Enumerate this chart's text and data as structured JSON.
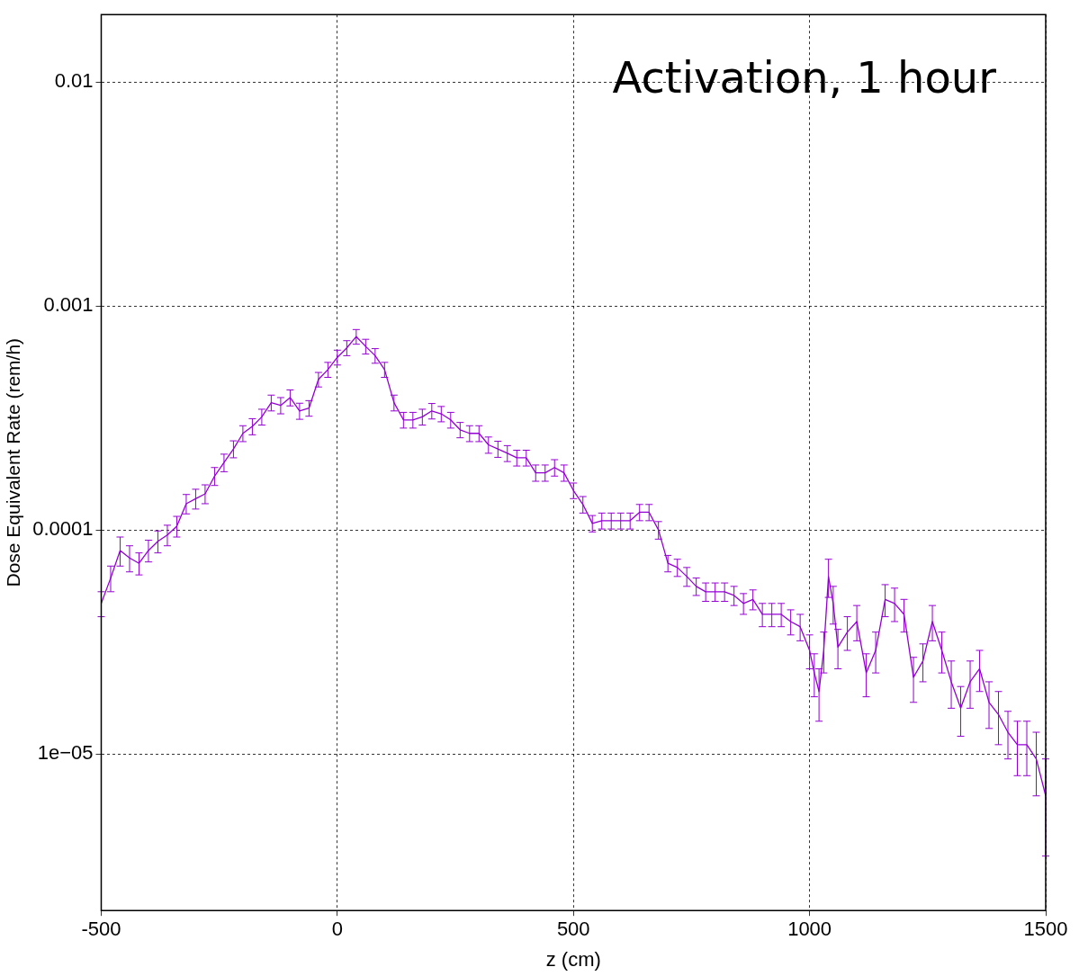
{
  "chart_data": {
    "type": "line",
    "xlabel": "z (cm)",
    "ylabel": "Dose Equivalent Rate (rem/h)",
    "annotations": [
      "Activation, 1 hour"
    ],
    "log": "y",
    "grid": true,
    "marker": "none",
    "line_style": "solid",
    "xlim": [
      -500,
      1500
    ],
    "xticks": [
      -500,
      0,
      500,
      1000,
      1500
    ],
    "ylim": [
      2e-06,
      0.02
    ],
    "yticks": [
      0.01,
      0.001,
      0.0001,
      {
        "value": 1e-05,
        "label": "1e−05"
      }
    ],
    "x": [
      -500,
      -480,
      -460,
      -440,
      -420,
      -400,
      -380,
      -360,
      -340,
      -320,
      -300,
      -280,
      -260,
      -240,
      -220,
      -200,
      -180,
      -160,
      -140,
      -120,
      -100,
      -80,
      -60,
      -40,
      -20,
      0,
      20,
      40,
      60,
      80,
      100,
      120,
      140,
      160,
      180,
      200,
      220,
      240,
      260,
      280,
      300,
      320,
      340,
      360,
      380,
      400,
      420,
      440,
      460,
      480,
      500,
      520,
      540,
      560,
      580,
      600,
      620,
      640,
      660,
      680,
      700,
      720,
      740,
      760,
      780,
      800,
      820,
      840,
      860,
      880,
      900,
      920,
      940,
      960,
      980,
      1000,
      1010,
      1020,
      1030,
      1040,
      1050,
      1060,
      1080,
      1100,
      1120,
      1140,
      1160,
      1180,
      1200,
      1220,
      1240,
      1260,
      1280,
      1300,
      1320,
      1340,
      1360,
      1380,
      1400,
      1420,
      1440,
      1460,
      1480,
      1500
    ],
    "series": [
      {
        "color": "#9400d3",
        "values": [
          4.7e-05,
          6.1e-05,
          8.1e-05,
          7.5e-05,
          7.1e-05,
          8.1e-05,
          8.9e-05,
          9.5e-05,
          0.000104,
          0.000131,
          0.000138,
          0.000145,
          0.000174,
          0.0002,
          0.00023,
          0.00027,
          0.00029,
          0.00032,
          0.00037,
          0.00036,
          0.00039,
          0.00034,
          0.00035,
          0.00047,
          0.00052,
          0.00059,
          0.00065,
          0.00073,
          0.00066,
          0.0006,
          0.00052,
          0.00037,
          0.00031,
          0.00031,
          0.00032,
          0.00034,
          0.00033,
          0.00031,
          0.00028,
          0.00027,
          0.00027,
          0.00024,
          0.00023,
          0.00022,
          0.00021,
          0.00021,
          0.00018,
          0.00018,
          0.00019,
          0.00018,
          0.00015,
          0.00013,
          0.000107,
          0.00011,
          0.00011,
          0.00011,
          0.00011,
          0.00012,
          0.00012,
          0.0001,
          7.1e-05,
          6.8e-05,
          6.2e-05,
          5.6e-05,
          5.3e-05,
          5.3e-05,
          5.3e-05,
          5.1e-05,
          4.7e-05,
          4.9e-05,
          4.2e-05,
          4.2e-05,
          4.2e-05,
          3.9e-05,
          3.7e-05,
          2.9e-05,
          2.3e-05,
          1.9e-05,
          2.9e-05,
          6.2e-05,
          4.7e-05,
          3e-05,
          3.5e-05,
          3.9e-05,
          2.3e-05,
          2.9e-05,
          4.9e-05,
          4.7e-05,
          4.2e-05,
          2.2e-05,
          2.6e-05,
          3.9e-05,
          2.9e-05,
          2.1e-05,
          1.6e-05,
          2.1e-05,
          2.4e-05,
          1.7e-05,
          1.5e-05,
          1.25e-05,
          1.1e-05,
          1.1e-05,
          9.5e-06,
          6.5e-06
        ],
        "errors": [
          6e-06,
          8e-06,
          1.2e-05,
          1e-05,
          8e-06,
          9e-06,
          1e-05,
          1e-05,
          1.1e-05,
          1.3e-05,
          1.4e-05,
          1.4e-05,
          1.6e-05,
          1.8e-05,
          2e-05,
          2.2e-05,
          2.4e-05,
          2.6e-05,
          3e-05,
          3e-05,
          3.2e-05,
          2.8e-05,
          2.8e-05,
          3.5e-05,
          4e-05,
          4.5e-05,
          5e-05,
          5.5e-05,
          5e-05,
          4.5e-05,
          4e-05,
          3e-05,
          2.5e-05,
          2.5e-05,
          2.6e-05,
          2.7e-05,
          2.6e-05,
          2.5e-05,
          2.2e-05,
          2.2e-05,
          2.2e-05,
          2e-05,
          1.9e-05,
          1.8e-05,
          1.7e-05,
          1.7e-05,
          1.5e-05,
          1.5e-05,
          1.6e-05,
          1.5e-05,
          1.2e-05,
          1.1e-05,
          9e-06,
          9e-06,
          9e-06,
          9e-06,
          9e-06,
          1e-05,
          1e-05,
          9e-06,
          6e-06,
          6e-06,
          6e-06,
          5e-06,
          5e-06,
          5e-06,
          5e-06,
          5e-06,
          5e-06,
          5e-06,
          5e-06,
          5e-06,
          5e-06,
          5e-06,
          5e-06,
          5e-06,
          5e-06,
          5e-06,
          6e-06,
          1.2e-05,
          9e-06,
          6e-06,
          6e-06,
          7e-06,
          5e-06,
          6e-06,
          8e-06,
          8e-06,
          7e-06,
          5e-06,
          5e-06,
          7e-06,
          6e-06,
          5e-06,
          4e-06,
          5e-06,
          5e-06,
          4e-06,
          4e-06,
          3e-06,
          3e-06,
          3e-06,
          3e-06,
          3e-06
        ]
      }
    ]
  }
}
